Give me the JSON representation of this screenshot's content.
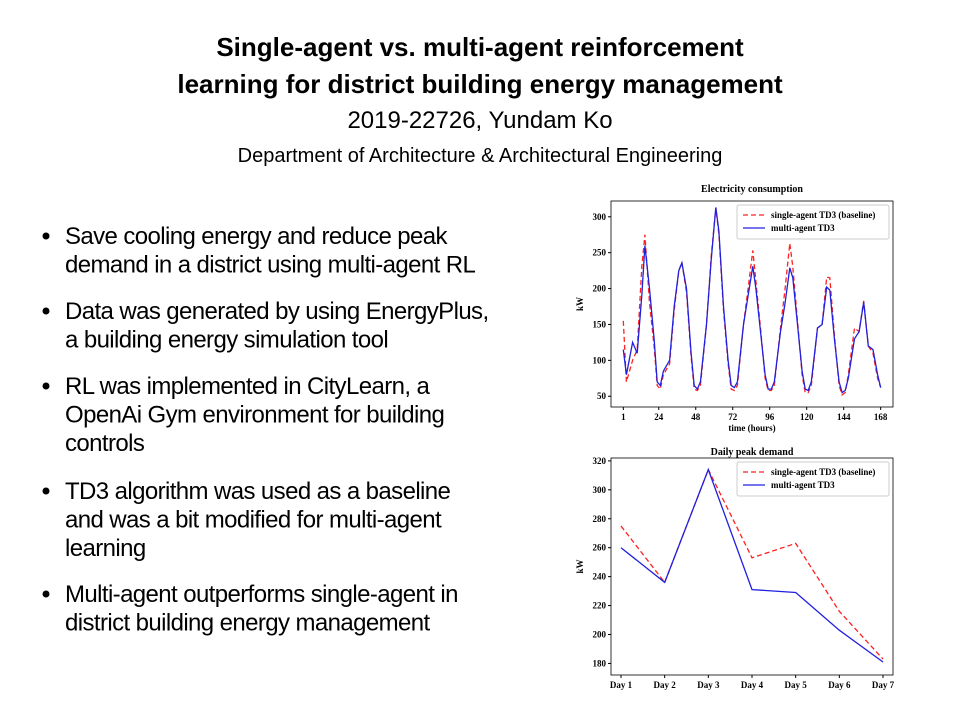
{
  "slide": {
    "title": [
      "Single-agent vs. multi-agent reinforcement",
      "learning for district building energy management"
    ],
    "author": "2019-22726, Yundam Ko",
    "affiliation": "Department of Architecture & Architectural Engineering",
    "bullets": [
      [
        "Save cooling energy and reduce peak",
        "demand in a district using multi-agent RL"
      ],
      [
        "Data was generated by using EnergyPlus,",
        "a building energy simulation tool"
      ],
      [
        "RL was implemented in CityLearn, a",
        "OpenAi Gym environment for building",
        "controls"
      ],
      [
        "TD3 algorithm was used as a baseline",
        "and was a bit modified for multi-agent",
        "learning"
      ],
      [
        "Multi-agent outperforms single-agent in",
        "district building energy management"
      ]
    ]
  },
  "chart_data": [
    {
      "type": "line",
      "title": "Electricity consumption",
      "xlabel": "time (hours)",
      "ylabel": "kW",
      "x": [
        1,
        3,
        7,
        10,
        13,
        15,
        18,
        21,
        23,
        25,
        27,
        31,
        34,
        37,
        39,
        42,
        45,
        47,
        49,
        51,
        55,
        58,
        61,
        63,
        66,
        69,
        71,
        73,
        75,
        79,
        82,
        85,
        87,
        90,
        93,
        95,
        97,
        99,
        103,
        106,
        109,
        111,
        114,
        117,
        119,
        121,
        123,
        127,
        130,
        133,
        135,
        138,
        141,
        143,
        145,
        147,
        151,
        154,
        157,
        160,
        163,
        166,
        168
      ],
      "series": [
        {
          "name": "single-agent TD3 (baseline)",
          "color": "#ff2020",
          "dashed": true,
          "values": [
            155,
            70,
            100,
            115,
            230,
            275,
            180,
            120,
            65,
            60,
            80,
            95,
            170,
            225,
            236,
            195,
            105,
            60,
            58,
            65,
            150,
            245,
            313,
            275,
            170,
            95,
            60,
            58,
            65,
            150,
            200,
            253,
            210,
            145,
            75,
            58,
            58,
            65,
            145,
            200,
            263,
            230,
            155,
            80,
            55,
            55,
            65,
            145,
            150,
            216,
            215,
            135,
            65,
            52,
            55,
            80,
            145,
            140,
            183,
            120,
            110,
            75,
            62
          ]
        },
        {
          "name": "multi-agent TD3",
          "color": "#2020e0",
          "dashed": false,
          "values": [
            115,
            80,
            125,
            110,
            190,
            260,
            200,
            130,
            70,
            65,
            85,
            100,
            175,
            225,
            236,
            200,
            110,
            65,
            60,
            70,
            150,
            240,
            313,
            280,
            175,
            100,
            65,
            62,
            70,
            150,
            190,
            231,
            200,
            140,
            80,
            60,
            60,
            70,
            140,
            180,
            229,
            215,
            150,
            85,
            60,
            58,
            70,
            145,
            150,
            202,
            198,
            130,
            70,
            55,
            58,
            75,
            130,
            140,
            181,
            120,
            115,
            80,
            62
          ]
        }
      ],
      "xlim": [
        -7,
        176
      ],
      "xticks": [
        1,
        24,
        48,
        72,
        96,
        120,
        144,
        168
      ],
      "ylim": [
        35,
        322
      ],
      "yticks": [
        50,
        100,
        150,
        200,
        250,
        300
      ],
      "legend": "upper right"
    },
    {
      "type": "line",
      "title": "Daily peak demand",
      "ylabel": "kW",
      "categories": [
        "Day 1",
        "Day 2",
        "Day 3",
        "Day 4",
        "Day 5",
        "Day 6",
        "Day 7"
      ],
      "series": [
        {
          "name": "single-agent TD3 (baseline)",
          "color": "#ff2020",
          "dashed": true,
          "values": [
            275,
            236,
            314,
            253,
            263,
            216,
            183
          ]
        },
        {
          "name": "multi-agent TD3",
          "color": "#2020e0",
          "dashed": false,
          "values": [
            260,
            236,
            314,
            231,
            229,
            203,
            181
          ]
        }
      ],
      "ylim": [
        172,
        322
      ],
      "yticks": [
        180,
        200,
        220,
        240,
        260,
        280,
        300,
        320
      ],
      "legend": "upper right"
    }
  ]
}
